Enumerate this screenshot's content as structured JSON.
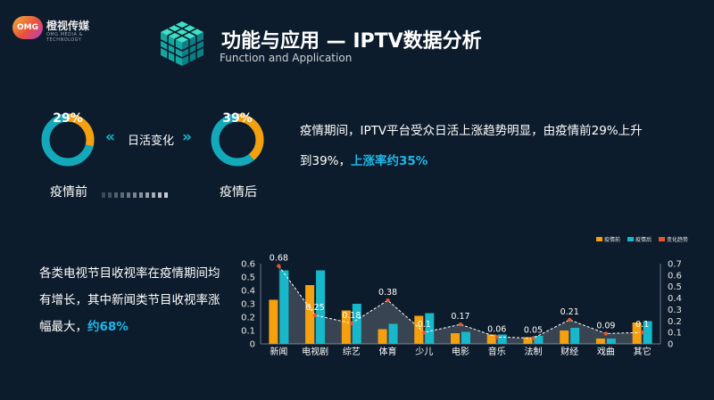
{
  "logo": {
    "badge": "OMG",
    "name": "橙视传媒",
    "sub": "OMG MEDIA & TECHNOLOGY"
  },
  "header": {
    "title": "功能与应用 — IPTV数据分析",
    "subtitle": "Function and Application"
  },
  "comparison": {
    "before": {
      "percent": 29,
      "text": "29%",
      "label": "疫情前"
    },
    "after": {
      "percent": 39,
      "text": "39%",
      "label": "疫情后"
    },
    "change_label": "日活变化",
    "chevron_left": "«",
    "chevron_right": "»"
  },
  "desc_top": {
    "line1": "疫情期间，IPTV平台受众日活上涨趋势明显，由疫情前29%上升",
    "line2_prefix": "到39%，",
    "line2_highlight": "上涨率约35%"
  },
  "desc_left": {
    "prefix": "各类电视节目收视率在疫情期间均有增长，其中新闻类节目收视率涨幅最大，",
    "highlight": "约68%"
  },
  "colors": {
    "before": "#f5a00f",
    "after": "#17b8c9",
    "trend": "#e4572e",
    "donut_track": "#13a9bb",
    "bg": "#0d1c2c"
  },
  "chart_data": {
    "type": "bar",
    "categories": [
      "新闻",
      "电视剧",
      "综艺",
      "体育",
      "少儿",
      "电影",
      "音乐",
      "法制",
      "财经",
      "戏曲",
      "其它"
    ],
    "series": [
      {
        "name": "疫情前",
        "values": [
          0.33,
          0.44,
          0.25,
          0.11,
          0.21,
          0.08,
          0.07,
          0.05,
          0.1,
          0.04,
          0.16
        ]
      },
      {
        "name": "疫情后",
        "values": [
          0.55,
          0.55,
          0.3,
          0.15,
          0.23,
          0.09,
          0.07,
          0.06,
          0.12,
          0.04,
          0.17
        ]
      },
      {
        "name": "变化趋势",
        "values": [
          0.68,
          0.25,
          0.18,
          0.38,
          0.1,
          0.17,
          0.06,
          0.05,
          0.21,
          0.09,
          0.1
        ]
      }
    ],
    "trend_labels": [
      "0.68",
      "0.25",
      "0.18",
      "0.38",
      "0.1",
      "0.17",
      "0.06",
      "0.05",
      "0.21",
      "0.09",
      "0.1"
    ],
    "y_left": {
      "min": 0,
      "max": 0.6,
      "ticks": [
        "0",
        "0.1",
        "0.2",
        "0.3",
        "0.4",
        "0.5",
        "0.6"
      ]
    },
    "y_right": {
      "min": 0,
      "max": 0.7,
      "ticks": [
        "0",
        "0.1",
        "0.2",
        "0.3",
        "0.4",
        "0.5",
        "0.6",
        "0.7"
      ]
    },
    "legend_position": "top-right"
  }
}
